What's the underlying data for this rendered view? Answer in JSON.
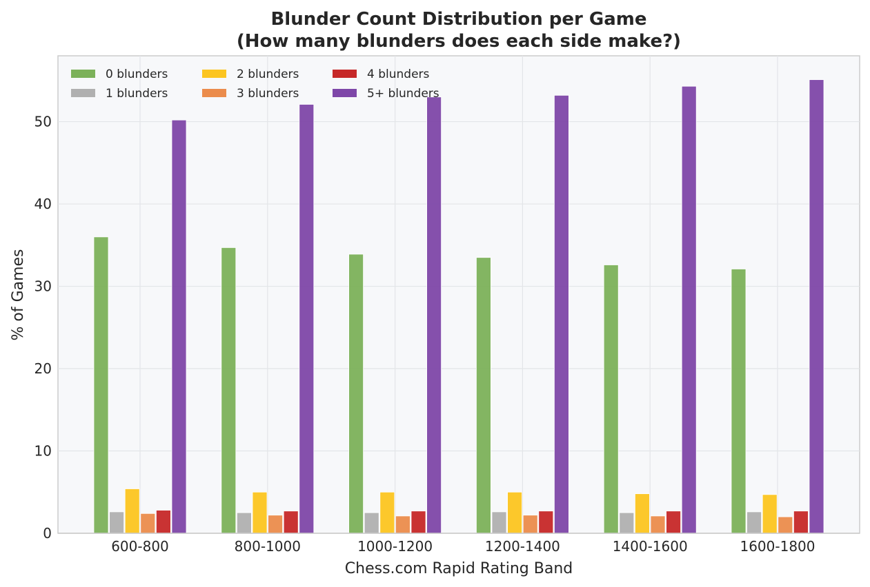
{
  "chart_data": {
    "type": "bar",
    "title": "Blunder Count Distribution per Game",
    "subtitle": "(How many blunders does each side make?)",
    "xlabel": "Chess.com Rapid Rating Band",
    "ylabel": "% of Games",
    "categories": [
      "600-800",
      "800-1000",
      "1000-1200",
      "1200-1400",
      "1400-1600",
      "1600-1800"
    ],
    "ylim": [
      0,
      58
    ],
    "yticks": [
      "0",
      "10",
      "20",
      "30",
      "40",
      "50"
    ],
    "grid": true,
    "legend_position": "top-left",
    "series": [
      {
        "name": "0 blunders",
        "color": "#7cb15a",
        "values": [
          36.0,
          34.7,
          33.9,
          33.5,
          32.6,
          32.1
        ]
      },
      {
        "name": "1 blunders",
        "color": "#b0b0b0",
        "values": [
          2.6,
          2.5,
          2.5,
          2.6,
          2.5,
          2.6
        ]
      },
      {
        "name": "2 blunders",
        "color": "#fcc520",
        "values": [
          5.4,
          5.0,
          5.0,
          5.0,
          4.8,
          4.7
        ]
      },
      {
        "name": "3 blunders",
        "color": "#eb8c4c",
        "values": [
          2.4,
          2.2,
          2.1,
          2.2,
          2.1,
          2.0
        ]
      },
      {
        "name": "4 blunders",
        "color": "#c62828",
        "values": [
          2.8,
          2.7,
          2.7,
          2.7,
          2.7,
          2.7
        ]
      },
      {
        "name": "5+ blunders",
        "color": "#7e47a8",
        "values": [
          50.2,
          52.1,
          53.0,
          53.2,
          54.3,
          55.1
        ]
      }
    ]
  }
}
